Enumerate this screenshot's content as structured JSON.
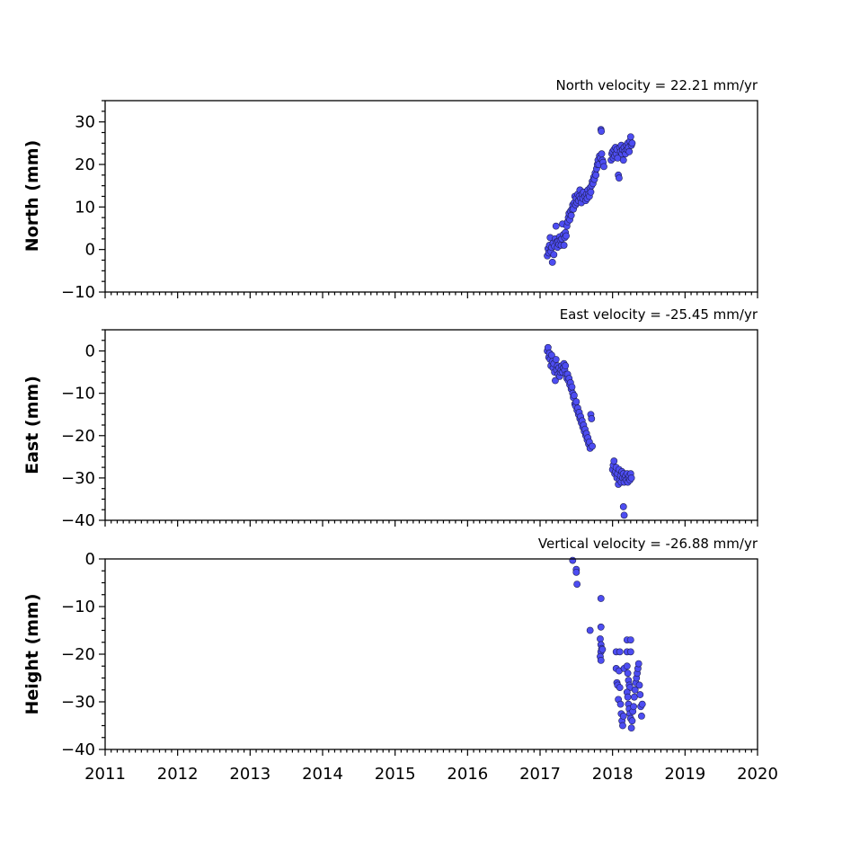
{
  "chart_data": [
    {
      "type": "scatter",
      "ylabel": "North (mm)",
      "velocity_label": "North velocity = 22.21 mm/yr",
      "xlim": [
        2011,
        2020
      ],
      "ylim": [
        -10,
        35
      ],
      "yticks": [
        -10,
        0,
        10,
        20,
        30
      ],
      "ytick_labels": [
        "−10",
        "0",
        "10",
        "20",
        "30"
      ],
      "xtick_labels_visible": false,
      "points": [
        [
          2017.1,
          -1.5
        ],
        [
          2017.11,
          0.2
        ],
        [
          2017.12,
          -0.8
        ],
        [
          2017.13,
          1.0
        ],
        [
          2017.14,
          2.8
        ],
        [
          2017.15,
          -0.5
        ],
        [
          2017.16,
          0.5
        ],
        [
          2017.17,
          -3.0
        ],
        [
          2017.18,
          1.5
        ],
        [
          2017.19,
          -1.2
        ],
        [
          2017.2,
          0.8
        ],
        [
          2017.21,
          2.5
        ],
        [
          2017.22,
          5.5
        ],
        [
          2017.23,
          1.8
        ],
        [
          2017.24,
          0.5
        ],
        [
          2017.25,
          2.0
        ],
        [
          2017.26,
          1.2
        ],
        [
          2017.27,
          3.0
        ],
        [
          2017.28,
          2.2
        ],
        [
          2017.29,
          1.0
        ],
        [
          2017.3,
          2.5
        ],
        [
          2017.31,
          6.0
        ],
        [
          2017.32,
          3.5
        ],
        [
          2017.33,
          1.0
        ],
        [
          2017.34,
          2.8
        ],
        [
          2017.35,
          4.0
        ],
        [
          2017.36,
          3.2
        ],
        [
          2017.37,
          5.5
        ],
        [
          2017.38,
          6.5
        ],
        [
          2017.39,
          7.5
        ],
        [
          2017.4,
          8.5
        ],
        [
          2017.41,
          7.0
        ],
        [
          2017.42,
          9.0
        ],
        [
          2017.43,
          8.0
        ],
        [
          2017.44,
          9.5
        ],
        [
          2017.45,
          10.5
        ],
        [
          2017.46,
          9.5
        ],
        [
          2017.47,
          11.0
        ],
        [
          2017.48,
          12.5
        ],
        [
          2017.49,
          10.5
        ],
        [
          2017.5,
          12.0
        ],
        [
          2017.51,
          11.0
        ],
        [
          2017.52,
          13.0
        ],
        [
          2017.53,
          11.5
        ],
        [
          2017.54,
          12.5
        ],
        [
          2017.55,
          14.0
        ],
        [
          2017.56,
          12.0
        ],
        [
          2017.57,
          11.0
        ],
        [
          2017.58,
          13.0
        ],
        [
          2017.59,
          12.0
        ],
        [
          2017.6,
          13.5
        ],
        [
          2017.62,
          12.5
        ],
        [
          2017.63,
          11.5
        ],
        [
          2017.64,
          13.0
        ],
        [
          2017.65,
          12.0
        ],
        [
          2017.66,
          14.0
        ],
        [
          2017.67,
          13.0
        ],
        [
          2017.68,
          12.5
        ],
        [
          2017.69,
          14.5
        ],
        [
          2017.7,
          13.5
        ],
        [
          2017.71,
          15.0
        ],
        [
          2017.72,
          16.0
        ],
        [
          2017.73,
          15.5
        ],
        [
          2017.74,
          17.0
        ],
        [
          2017.75,
          16.5
        ],
        [
          2017.76,
          18.0
        ],
        [
          2017.77,
          17.5
        ],
        [
          2017.78,
          19.0
        ],
        [
          2017.79,
          20.0
        ],
        [
          2017.8,
          21.0
        ],
        [
          2017.81,
          20.0
        ],
        [
          2017.82,
          22.0
        ],
        [
          2017.83,
          21.5
        ],
        [
          2017.84,
          28.2
        ],
        [
          2017.845,
          27.8
        ],
        [
          2017.85,
          22.5
        ],
        [
          2017.86,
          21.0
        ],
        [
          2017.87,
          20.5
        ],
        [
          2017.88,
          19.5
        ],
        [
          2017.98,
          21.0
        ],
        [
          2017.99,
          22.5
        ],
        [
          2018.0,
          23.0
        ],
        [
          2018.01,
          21.5
        ],
        [
          2018.02,
          23.5
        ],
        [
          2018.03,
          22.0
        ],
        [
          2018.04,
          24.0
        ],
        [
          2018.05,
          22.5
        ],
        [
          2018.06,
          23.5
        ],
        [
          2018.07,
          21.5
        ],
        [
          2018.08,
          17.5
        ],
        [
          2018.09,
          16.8
        ],
        [
          2018.1,
          24.0
        ],
        [
          2018.11,
          23.0
        ],
        [
          2018.12,
          24.5
        ],
        [
          2018.13,
          22.5
        ],
        [
          2018.14,
          23.5
        ],
        [
          2018.15,
          21.0
        ],
        [
          2018.16,
          24.0
        ],
        [
          2018.17,
          23.0
        ],
        [
          2018.18,
          22.5
        ],
        [
          2018.19,
          24.5
        ],
        [
          2018.2,
          23.5
        ],
        [
          2018.21,
          25.0
        ],
        [
          2018.22,
          24.0
        ],
        [
          2018.23,
          23.0
        ],
        [
          2018.24,
          25.5
        ],
        [
          2018.25,
          26.5
        ],
        [
          2018.26,
          24.5
        ],
        [
          2018.27,
          25.0
        ]
      ]
    },
    {
      "type": "scatter",
      "ylabel": "East (mm)",
      "velocity_label": "East velocity = -25.45 mm/yr",
      "xlim": [
        2011,
        2020
      ],
      "ylim": [
        -40,
        5
      ],
      "yticks": [
        -40,
        -30,
        -20,
        -10,
        0
      ],
      "ytick_labels": [
        "−40",
        "−30",
        "−20",
        "−10",
        "0"
      ],
      "xtick_labels_visible": false,
      "points": [
        [
          2017.1,
          0.0
        ],
        [
          2017.11,
          0.8
        ],
        [
          2017.12,
          -1.5
        ],
        [
          2017.13,
          -0.5
        ],
        [
          2017.14,
          -2.0
        ],
        [
          2017.15,
          -3.5
        ],
        [
          2017.16,
          -1.0
        ],
        [
          2017.17,
          -2.5
        ],
        [
          2017.18,
          -4.0
        ],
        [
          2017.19,
          -3.0
        ],
        [
          2017.2,
          -5.0
        ],
        [
          2017.21,
          -7.0
        ],
        [
          2017.22,
          -2.0
        ],
        [
          2017.23,
          -4.5
        ],
        [
          2017.24,
          -3.5
        ],
        [
          2017.25,
          -5.5
        ],
        [
          2017.26,
          -4.0
        ],
        [
          2017.27,
          -6.0
        ],
        [
          2017.28,
          -5.0
        ],
        [
          2017.29,
          -4.5
        ],
        [
          2017.3,
          -3.5
        ],
        [
          2017.31,
          -5.0
        ],
        [
          2017.32,
          -4.0
        ],
        [
          2017.33,
          -3.0
        ],
        [
          2017.34,
          -4.5
        ],
        [
          2017.35,
          -3.5
        ],
        [
          2017.36,
          -5.5
        ],
        [
          2017.37,
          -6.5
        ],
        [
          2017.38,
          -5.5
        ],
        [
          2017.39,
          -7.0
        ],
        [
          2017.4,
          -6.5
        ],
        [
          2017.41,
          -8.0
        ],
        [
          2017.42,
          -7.5
        ],
        [
          2017.43,
          -9.0
        ],
        [
          2017.44,
          -8.5
        ],
        [
          2017.45,
          -10.0
        ],
        [
          2017.46,
          -11.0
        ],
        [
          2017.47,
          -10.5
        ],
        [
          2017.48,
          -12.5
        ],
        [
          2017.49,
          -13.0
        ],
        [
          2017.5,
          -12.0
        ],
        [
          2017.51,
          -14.0
        ],
        [
          2017.52,
          -13.5
        ],
        [
          2017.53,
          -15.0
        ],
        [
          2017.54,
          -14.5
        ],
        [
          2017.55,
          -16.0
        ],
        [
          2017.56,
          -15.5
        ],
        [
          2017.57,
          -17.0
        ],
        [
          2017.58,
          -16.5
        ],
        [
          2017.59,
          -18.0
        ],
        [
          2017.6,
          -17.5
        ],
        [
          2017.61,
          -19.0
        ],
        [
          2017.62,
          -18.5
        ],
        [
          2017.63,
          -20.0
        ],
        [
          2017.64,
          -19.5
        ],
        [
          2017.65,
          -21.0
        ],
        [
          2017.66,
          -20.5
        ],
        [
          2017.67,
          -22.0
        ],
        [
          2017.68,
          -21.5
        ],
        [
          2017.69,
          -23.0
        ],
        [
          2017.7,
          -15.0
        ],
        [
          2017.71,
          -16.0
        ],
        [
          2017.72,
          -22.5
        ],
        [
          2018.0,
          -28.0
        ],
        [
          2018.01,
          -27.0
        ],
        [
          2018.02,
          -26.0
        ],
        [
          2018.03,
          -29.0
        ],
        [
          2018.04,
          -28.5
        ],
        [
          2018.05,
          -27.5
        ],
        [
          2018.06,
          -30.0
        ],
        [
          2018.07,
          -29.0
        ],
        [
          2018.08,
          -31.5
        ],
        [
          2018.09,
          -28.0
        ],
        [
          2018.1,
          -30.5
        ],
        [
          2018.11,
          -29.5
        ],
        [
          2018.12,
          -31.0
        ],
        [
          2018.13,
          -28.5
        ],
        [
          2018.14,
          -30.0
        ],
        [
          2018.15,
          -29.0
        ],
        [
          2018.16,
          -31.0
        ],
        [
          2018.17,
          -30.0
        ],
        [
          2018.18,
          -29.5
        ],
        [
          2018.19,
          -30.5
        ],
        [
          2018.2,
          -29.0
        ],
        [
          2018.21,
          -31.0
        ],
        [
          2018.22,
          -30.0
        ],
        [
          2018.23,
          -29.5
        ],
        [
          2018.24,
          -30.5
        ],
        [
          2018.25,
          -29.0
        ],
        [
          2018.26,
          -30.0
        ],
        [
          2018.15,
          -36.8
        ],
        [
          2018.16,
          -38.8
        ]
      ]
    },
    {
      "type": "scatter",
      "ylabel": "Height (mm)",
      "velocity_label": "Vertical velocity = -26.88 mm/yr",
      "xlim": [
        2011,
        2020
      ],
      "ylim": [
        -40,
        0
      ],
      "yticks": [
        -40,
        -30,
        -20,
        -10,
        0
      ],
      "ytick_labels": [
        "−40",
        "−30",
        "−20",
        "−10",
        "0"
      ],
      "xticks": [
        2011,
        2012,
        2013,
        2014,
        2015,
        2016,
        2017,
        2018,
        2019,
        2020
      ],
      "xtick_labels": [
        "2011",
        "2012",
        "2013",
        "2014",
        "2015",
        "2016",
        "2017",
        "2018",
        "2019",
        "2020"
      ],
      "points": [
        [
          2017.45,
          -0.3
        ],
        [
          2017.5,
          -2.2
        ],
        [
          2017.5,
          -2.8
        ],
        [
          2017.51,
          -5.3
        ],
        [
          2017.69,
          -15.0
        ],
        [
          2017.84,
          -8.3
        ],
        [
          2017.84,
          -14.3
        ],
        [
          2017.83,
          -16.8
        ],
        [
          2017.84,
          -18.0
        ],
        [
          2017.85,
          -18.8
        ],
        [
          2017.84,
          -19.5
        ],
        [
          2017.83,
          -20.5
        ],
        [
          2017.84,
          -21.3
        ],
        [
          2017.86,
          -19.0
        ],
        [
          2018.05,
          -19.5
        ],
        [
          2018.1,
          -19.5
        ],
        [
          2018.05,
          -23.0
        ],
        [
          2018.06,
          -26.0
        ],
        [
          2018.07,
          -26.5
        ],
        [
          2018.08,
          -29.5
        ],
        [
          2018.09,
          -23.5
        ],
        [
          2018.1,
          -27.0
        ],
        [
          2018.11,
          -30.5
        ],
        [
          2018.12,
          -32.5
        ],
        [
          2018.13,
          -34.0
        ],
        [
          2018.14,
          -35.0
        ],
        [
          2018.15,
          -33.0
        ],
        [
          2018.16,
          -23.0
        ],
        [
          2018.2,
          -17.0
        ],
        [
          2018.25,
          -17.0
        ],
        [
          2018.2,
          -19.5
        ],
        [
          2018.25,
          -19.5
        ],
        [
          2018.2,
          -22.5
        ],
        [
          2018.21,
          -24.0
        ],
        [
          2018.22,
          -25.5
        ],
        [
          2018.23,
          -26.5
        ],
        [
          2018.24,
          -27.0
        ],
        [
          2018.2,
          -28.0
        ],
        [
          2018.21,
          -29.0
        ],
        [
          2018.22,
          -30.5
        ],
        [
          2018.23,
          -31.5
        ],
        [
          2018.24,
          -32.5
        ],
        [
          2018.25,
          -33.5
        ],
        [
          2018.26,
          -35.5
        ],
        [
          2018.27,
          -34.0
        ],
        [
          2018.28,
          -32.0
        ],
        [
          2018.29,
          -31.0
        ],
        [
          2018.3,
          -29.0
        ],
        [
          2018.31,
          -27.5
        ],
        [
          2018.32,
          -26.0
        ],
        [
          2018.33,
          -25.0
        ],
        [
          2018.34,
          -24.0
        ],
        [
          2018.35,
          -23.0
        ],
        [
          2018.36,
          -22.0
        ],
        [
          2018.37,
          -26.5
        ],
        [
          2018.38,
          -28.5
        ],
        [
          2018.39,
          -31.0
        ],
        [
          2018.4,
          -33.0
        ],
        [
          2018.41,
          -30.5
        ]
      ]
    }
  ],
  "colors": {
    "point_fill": "#4d4df2",
    "point_edge": "#1f1f55",
    "axes": "#000000"
  }
}
